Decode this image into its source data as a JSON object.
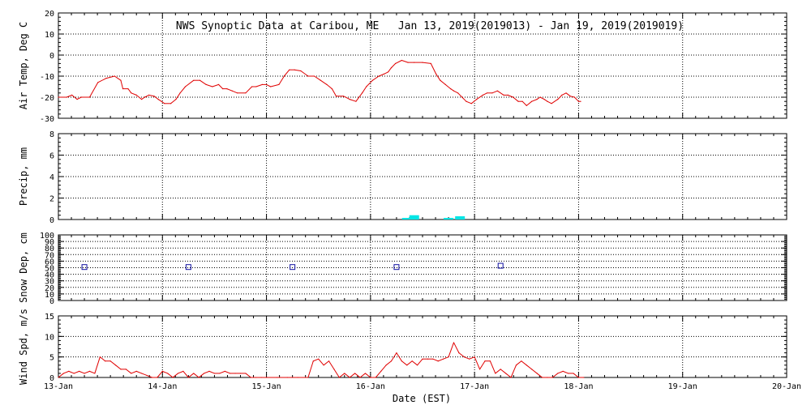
{
  "chart_data": {
    "type": "multi-panel",
    "title": "NWS Synoptic Data at Caribou, ME   Jan 13, 2019(2019013) - Jan 19, 2019(2019019)",
    "xlabel": "Date (EST)",
    "x_range_days": [
      0,
      7
    ],
    "x_ticks": [
      {
        "day": 0,
        "label": "13-Jan"
      },
      {
        "day": 1,
        "label": "14-Jan"
      },
      {
        "day": 2,
        "label": "15-Jan"
      },
      {
        "day": 3,
        "label": "16-Jan"
      },
      {
        "day": 4,
        "label": "17-Jan"
      },
      {
        "day": 5,
        "label": "18-Jan"
      },
      {
        "day": 6,
        "label": "19-Jan"
      },
      {
        "day": 7,
        "label": "20-Jan"
      }
    ],
    "colors": {
      "air_temp": "#e00000",
      "precip": "#00e5e5",
      "snow": "#1010a0",
      "wind": "#e00000",
      "axes": "#000000"
    },
    "panels": [
      {
        "id": "air-temp",
        "ylabel": "Air Temp, Deg C",
        "ylim": [
          -30,
          20
        ],
        "yticks": [
          -30,
          -20,
          -10,
          0,
          10,
          20
        ],
        "series": {
          "name": "Air Temp",
          "type": "line",
          "x": [
            0.0,
            0.08,
            0.13,
            0.18,
            0.22,
            0.3,
            0.38,
            0.46,
            0.54,
            0.6,
            0.62,
            0.67,
            0.7,
            0.75,
            0.8,
            0.83,
            0.87,
            0.92,
            0.96,
            1.02,
            1.08,
            1.13,
            1.17,
            1.22,
            1.3,
            1.36,
            1.42,
            1.48,
            1.54,
            1.58,
            1.62,
            1.67,
            1.72,
            1.8,
            1.86,
            1.9,
            1.96,
            2.0,
            2.04,
            2.12,
            2.17,
            2.22,
            2.27,
            2.33,
            2.4,
            2.46,
            2.52,
            2.58,
            2.63,
            2.67,
            2.74,
            2.8,
            2.86,
            2.92,
            2.96,
            3.02,
            3.08,
            3.13,
            3.17,
            3.2,
            3.24,
            3.3,
            3.36,
            3.42,
            3.5,
            3.58,
            3.63,
            3.67,
            3.72,
            3.77,
            3.8,
            3.84,
            3.88,
            3.92,
            3.97,
            4.02,
            4.08,
            4.12,
            4.17,
            4.22,
            4.28,
            4.32,
            4.37,
            4.42,
            4.46,
            4.5,
            4.55,
            4.6,
            4.63,
            4.67,
            4.7,
            4.74,
            4.8,
            4.84,
            4.88,
            4.92,
            4.96,
            5.0,
            5.02
          ],
          "values": [
            -20,
            -20,
            -19,
            -21,
            -20,
            -20,
            -13,
            -11,
            -10,
            -12,
            -16,
            -16,
            -18,
            -19,
            -21,
            -20,
            -19,
            -19.5,
            -21,
            -23,
            -23,
            -21,
            -18,
            -15,
            -12,
            -12,
            -14,
            -15,
            -14,
            -16,
            -16,
            -17,
            -18,
            -18,
            -15,
            -15,
            -14,
            -14,
            -15,
            -14,
            -10,
            -7,
            -7,
            -7.5,
            -10,
            -10,
            -12,
            -14,
            -16,
            -19.5,
            -19.5,
            -21,
            -22,
            -18,
            -15,
            -12,
            -10,
            -9,
            -8,
            -6,
            -4,
            -2.5,
            -3.5,
            -3.5,
            -3.5,
            -4,
            -9,
            -12,
            -14,
            -16,
            -17,
            -18,
            -20,
            -22,
            -23,
            -21,
            -19,
            -18,
            -18,
            -17,
            -19,
            -19,
            -20,
            -22,
            -22,
            -24,
            -22,
            -21,
            -20,
            -21,
            -22,
            -23,
            -21,
            -19,
            -18,
            -19.5,
            -20,
            -22,
            -22
          ]
        }
      },
      {
        "id": "precip",
        "ylabel": "Precip, mm",
        "ylim": [
          0,
          8
        ],
        "yticks": [
          0,
          2,
          4,
          6,
          8
        ],
        "series": {
          "name": "Precip",
          "type": "bar",
          "x": [
            3.35,
            3.42,
            3.75,
            3.86
          ],
          "values": [
            0.1,
            0.4,
            0.1,
            0.3
          ]
        }
      },
      {
        "id": "snow-depth",
        "ylabel": "Snow Dep, cm",
        "ylim": [
          0,
          100
        ],
        "yticks": [
          0,
          10,
          20,
          30,
          40,
          50,
          60,
          70,
          80,
          90,
          100
        ],
        "series": {
          "name": "Snow Depth",
          "type": "scatter",
          "x": [
            0.25,
            1.25,
            2.25,
            3.25,
            4.25
          ],
          "values": [
            51,
            51,
            51,
            51,
            53
          ]
        }
      },
      {
        "id": "wind",
        "ylabel": "Wind Spd, m/s",
        "ylim": [
          0,
          15
        ],
        "yticks": [
          0,
          5,
          10,
          15
        ],
        "series": {
          "name": "Wind Speed",
          "type": "line",
          "x": [
            0.0,
            0.05,
            0.1,
            0.15,
            0.2,
            0.25,
            0.3,
            0.35,
            0.4,
            0.45,
            0.5,
            0.55,
            0.6,
            0.65,
            0.7,
            0.75,
            0.8,
            0.85,
            0.9,
            0.95,
            1.0,
            1.05,
            1.1,
            1.15,
            1.2,
            1.25,
            1.3,
            1.35,
            1.4,
            1.45,
            1.5,
            1.55,
            1.6,
            1.65,
            1.7,
            1.75,
            1.8,
            1.85,
            1.9,
            1.95,
            2.0,
            2.1,
            2.2,
            2.3,
            2.4,
            2.45,
            2.5,
            2.55,
            2.6,
            2.65,
            2.7,
            2.75,
            2.8,
            2.85,
            2.9,
            2.95,
            3.0,
            3.05,
            3.1,
            3.15,
            3.2,
            3.25,
            3.3,
            3.35,
            3.4,
            3.45,
            3.5,
            3.55,
            3.6,
            3.65,
            3.7,
            3.75,
            3.8,
            3.85,
            3.9,
            3.95,
            4.0,
            4.05,
            4.1,
            4.15,
            4.2,
            4.25,
            4.3,
            4.35,
            4.4,
            4.45,
            4.5,
            4.55,
            4.6,
            4.65,
            4.7,
            4.75,
            4.8,
            4.85,
            4.9,
            4.95,
            5.0,
            5.05
          ],
          "values": [
            0,
            1,
            1.5,
            1,
            1.5,
            1,
            1.5,
            1,
            5,
            4,
            4,
            3,
            2,
            2,
            1,
            1.5,
            1,
            0.5,
            0,
            0,
            1.5,
            1,
            0,
            1,
            1.5,
            0,
            1,
            0,
            1,
            1.5,
            1,
            1,
            1.5,
            1,
            1,
            1,
            1,
            0,
            0,
            0,
            0,
            0,
            0,
            0,
            0,
            4,
            4.5,
            3,
            4,
            2,
            0,
            1,
            0,
            1,
            0,
            1,
            0,
            0,
            1.5,
            3,
            4,
            6,
            4,
            3,
            4,
            3,
            4.5,
            4.5,
            4.5,
            4,
            4.5,
            5,
            8.5,
            6,
            5,
            4.5,
            5,
            2,
            4,
            4,
            1,
            2,
            1,
            0,
            3,
            4,
            3,
            2,
            1,
            0,
            0,
            0,
            1,
            1.5,
            1,
            1,
            0,
            0
          ]
        }
      }
    ]
  }
}
